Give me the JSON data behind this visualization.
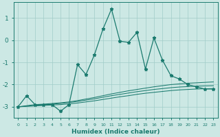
{
  "xlabel": "Humidex (Indice chaleur)",
  "x_values": [
    0,
    1,
    2,
    3,
    4,
    5,
    6,
    7,
    8,
    9,
    10,
    11,
    12,
    13,
    14,
    15,
    16,
    17,
    18,
    19,
    20,
    21,
    22,
    23
  ],
  "line1": [
    -3.0,
    -2.5,
    -2.9,
    -2.9,
    -2.9,
    -3.2,
    -2.9,
    -1.1,
    -1.55,
    -0.65,
    0.5,
    1.4,
    -0.05,
    -0.1,
    0.35,
    -1.3,
    0.1,
    -0.9,
    -1.6,
    -1.75,
    -2.0,
    -2.1,
    -2.2,
    -2.2
  ],
  "line2": [
    -3.0,
    -2.95,
    -2.9,
    -2.88,
    -2.85,
    -2.82,
    -2.78,
    -2.72,
    -2.65,
    -2.58,
    -2.5,
    -2.42,
    -2.35,
    -2.28,
    -2.22,
    -2.16,
    -2.1,
    -2.05,
    -2.0,
    -1.97,
    -1.94,
    -1.92,
    -1.9,
    -1.88
  ],
  "line3": [
    -3.0,
    -2.97,
    -2.94,
    -2.91,
    -2.88,
    -2.85,
    -2.81,
    -2.76,
    -2.7,
    -2.64,
    -2.57,
    -2.5,
    -2.44,
    -2.38,
    -2.32,
    -2.27,
    -2.22,
    -2.18,
    -2.14,
    -2.11,
    -2.09,
    -2.07,
    -2.06,
    -2.05
  ],
  "line4": [
    -3.0,
    -2.98,
    -2.96,
    -2.94,
    -2.92,
    -2.9,
    -2.87,
    -2.83,
    -2.78,
    -2.73,
    -2.67,
    -2.61,
    -2.55,
    -2.5,
    -2.44,
    -2.39,
    -2.35,
    -2.31,
    -2.27,
    -2.24,
    -2.22,
    -2.2,
    -2.19,
    -2.18
  ],
  "line_color": "#1a7a6e",
  "bg_color": "#cce8e4",
  "grid_color": "#a0ccc8",
  "ylim": [
    -3.5,
    1.7
  ],
  "yticks": [
    -3,
    -2,
    -1,
    0,
    1
  ],
  "xlim": [
    -0.5,
    23.5
  ],
  "figw": 3.2,
  "figh": 2.0,
  "dpi": 100
}
